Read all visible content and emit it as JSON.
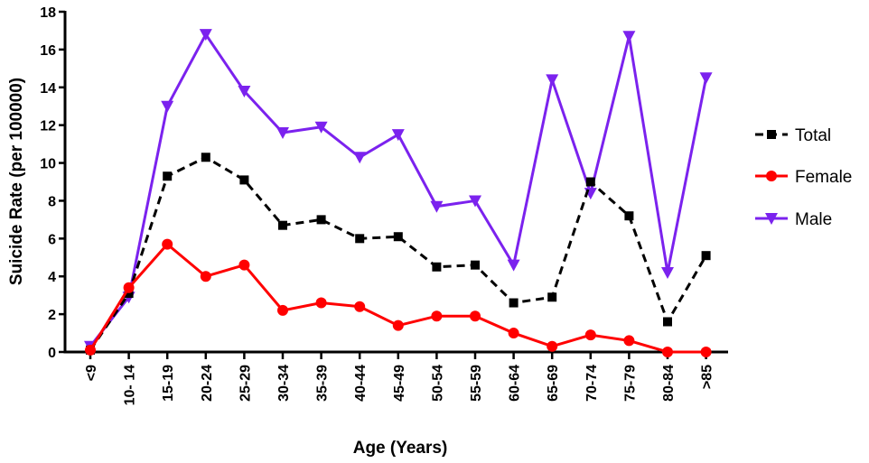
{
  "chart_data": {
    "type": "line",
    "title": "",
    "xlabel": "Age (Years)",
    "ylabel": "Suicide Rate (per 100000)",
    "ylim": [
      0,
      18
    ],
    "yticks": [
      "0",
      "2",
      "4",
      "6",
      "8",
      "10",
      "12",
      "14",
      "16",
      "18"
    ],
    "categories": [
      "<9",
      "10- 14",
      "15-19",
      "20-24",
      "25-29",
      "30-34",
      "35-39",
      "40-44",
      "45-49",
      "50-54",
      "55-59",
      "60-64",
      "65-69",
      "70-74",
      "75-79",
      "80-84",
      ">85"
    ],
    "legend_position": "right",
    "grid": false,
    "series": [
      {
        "name": "Total",
        "color": "#000000",
        "marker": "square",
        "dashed": true,
        "values": [
          0.1,
          3.1,
          9.3,
          10.3,
          9.1,
          6.7,
          7.0,
          6.0,
          6.1,
          4.5,
          4.6,
          2.6,
          2.9,
          9.0,
          7.2,
          1.6,
          5.1
        ]
      },
      {
        "name": "Female",
        "color": "#ff0000",
        "marker": "circle",
        "dashed": false,
        "values": [
          0.1,
          3.4,
          5.7,
          4.0,
          4.6,
          2.2,
          2.6,
          2.4,
          1.4,
          1.9,
          1.9,
          1.0,
          0.3,
          0.9,
          0.6,
          0.0,
          0.0
        ]
      },
      {
        "name": "Male",
        "color": "#7b22ee",
        "marker": "triangle-down",
        "dashed": false,
        "values": [
          0.3,
          2.9,
          13.0,
          16.8,
          13.8,
          11.6,
          11.9,
          10.3,
          11.5,
          7.7,
          8.0,
          4.6,
          14.4,
          8.4,
          16.7,
          4.2,
          14.5
        ]
      }
    ]
  }
}
